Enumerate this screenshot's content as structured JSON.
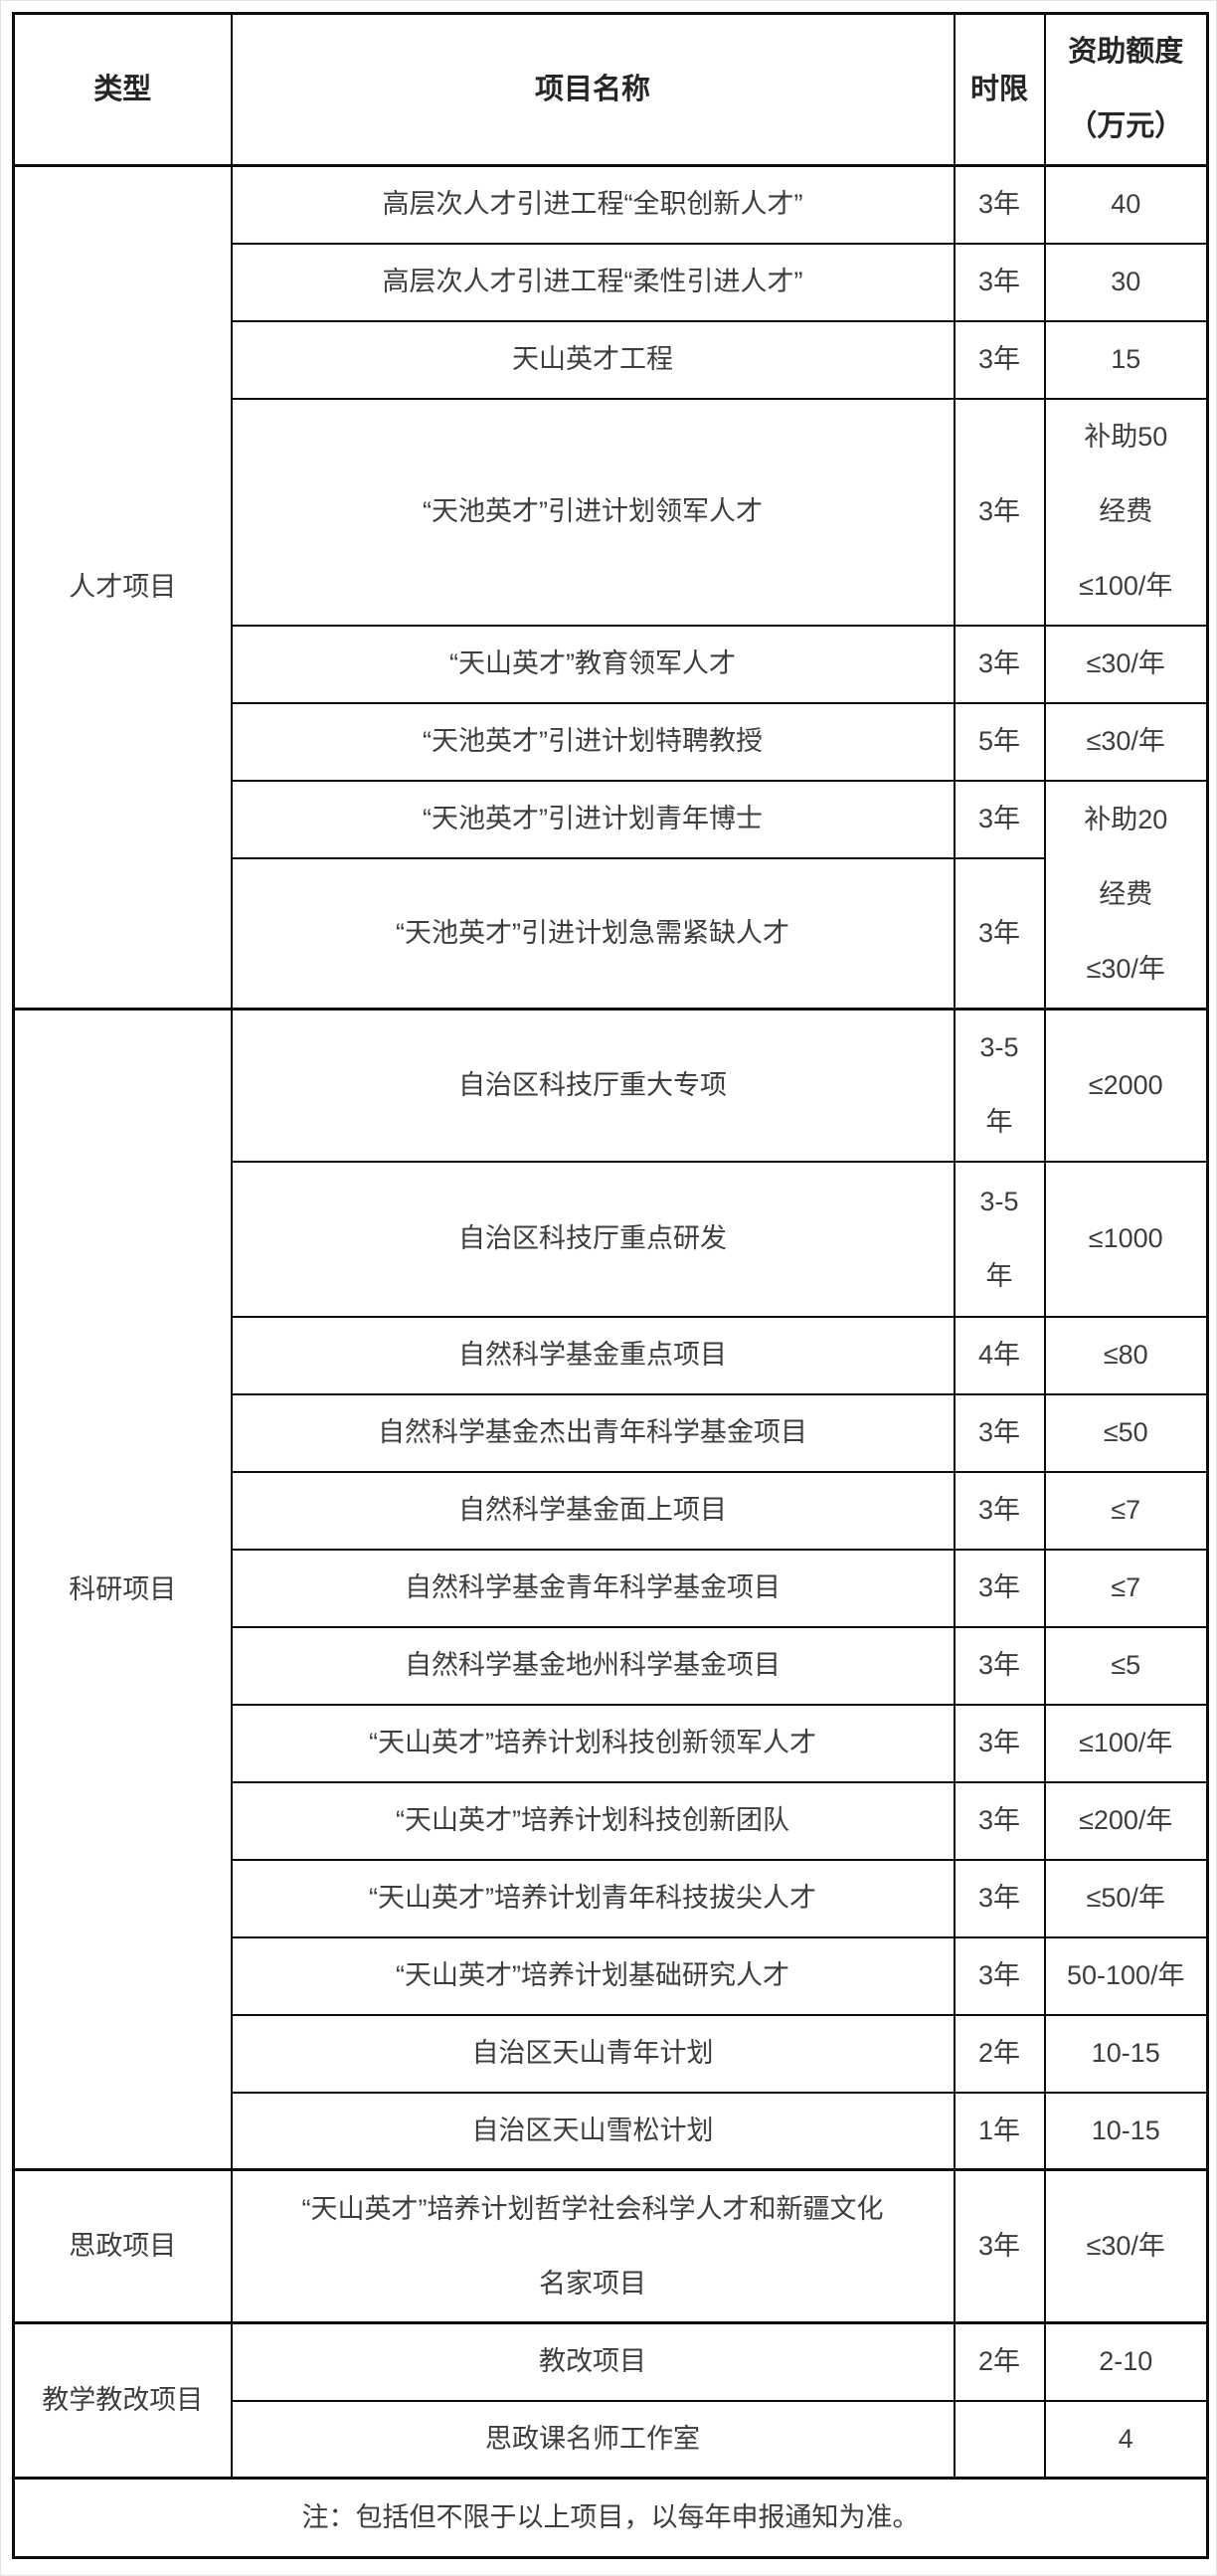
{
  "colors": {
    "background": "#ffffff",
    "border": "#0d0d0d",
    "header_text": "#262626",
    "body_text": "#3d3d3d"
  },
  "table": {
    "headers": {
      "type": "类型",
      "name": "项目名称",
      "term": "时限",
      "amount": "资助额度\n（万元）"
    },
    "categories": [
      {
        "label": "人才项目"
      },
      {
        "label": "科研项目"
      },
      {
        "label": "思政项目"
      },
      {
        "label": "教学教改项目"
      }
    ],
    "rows": [
      {
        "name": "高层次人才引进工程“全职创新人才”",
        "term": "3年",
        "amount": "40"
      },
      {
        "name": "高层次人才引进工程“柔性引进人才”",
        "term": "3年",
        "amount": "30"
      },
      {
        "name": "天山英才工程",
        "term": "3年",
        "amount": "15"
      },
      {
        "name": "“天池英才”引进计划领军人才",
        "term": "3年",
        "amount": "补助50\n经费\n≤100/年"
      },
      {
        "name": "“天山英才”教育领军人才",
        "term": "3年",
        "amount": "≤30/年"
      },
      {
        "name": "“天池英才”引进计划特聘教授",
        "term": "5年",
        "amount": "≤30/年"
      },
      {
        "name": "“天池英才”引进计划青年博士",
        "term": "3年",
        "amount": "补助20\n经费\n≤30/年"
      },
      {
        "name": "“天池英才”引进计划急需紧缺人才",
        "term": "3年",
        "amount": ""
      },
      {
        "name": "自治区科技厅重大专项",
        "term": "3-5\n年",
        "amount": "≤2000"
      },
      {
        "name": "自治区科技厅重点研发",
        "term": "3-5\n年",
        "amount": "≤1000"
      },
      {
        "name": "自然科学基金重点项目",
        "term": "4年",
        "amount": "≤80"
      },
      {
        "name": "自然科学基金杰出青年科学基金项目",
        "term": "3年",
        "amount": "≤50"
      },
      {
        "name": "自然科学基金面上项目",
        "term": "3年",
        "amount": "≤7"
      },
      {
        "name": "自然科学基金青年科学基金项目",
        "term": "3年",
        "amount": "≤7"
      },
      {
        "name": "自然科学基金地州科学基金项目",
        "term": "3年",
        "amount": "≤5"
      },
      {
        "name": "“天山英才”培养计划科技创新领军人才",
        "term": "3年",
        "amount": "≤100/年"
      },
      {
        "name": "“天山英才”培养计划科技创新团队",
        "term": "3年",
        "amount": "≤200/年"
      },
      {
        "name": "“天山英才”培养计划青年科技拔尖人才",
        "term": "3年",
        "amount": "≤50/年"
      },
      {
        "name": "“天山英才”培养计划基础研究人才",
        "term": "3年",
        "amount": "50-100/年"
      },
      {
        "name": "自治区天山青年计划",
        "term": "2年",
        "amount": "10-15"
      },
      {
        "name": "自治区天山雪松计划",
        "term": "1年",
        "amount": "10-15"
      },
      {
        "name": "“天山英才”培养计划哲学社会科学人才和新疆文化\n名家项目",
        "term": "3年",
        "amount": "≤30/年"
      },
      {
        "name": "教改项目",
        "term": "2年",
        "amount": "2-10"
      },
      {
        "name": "思政课名师工作室",
        "term": "",
        "amount": "4"
      }
    ],
    "note": "注：包括但不限于以上项目，以每年申报通知为准。"
  }
}
